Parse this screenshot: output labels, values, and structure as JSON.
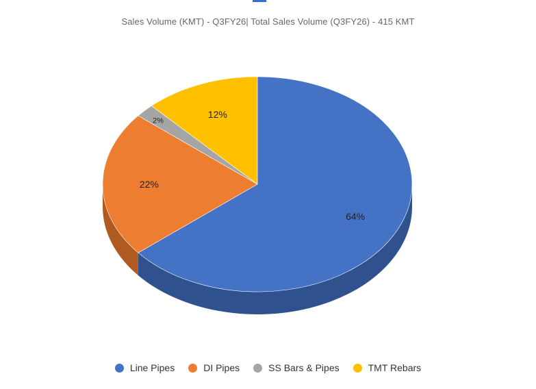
{
  "chart_data": {
    "type": "pie",
    "title": "Sales Volume (KMT) - Q3FY26| Total Sales Volume (Q3FY26) - 415 KMT",
    "style": "3d",
    "legend_position": "bottom",
    "series": [
      {
        "name": "Line Pipes",
        "value": 64,
        "label": "64%",
        "color": "#4472c4",
        "side_color": "#2f528f"
      },
      {
        "name": "DI Pipes",
        "value": 22,
        "label": "22%",
        "color": "#ed7d31",
        "side_color": "#ae5a21"
      },
      {
        "name": "SS Bars & Pipes",
        "value": 2,
        "label": "2%",
        "color": "#a5a5a5",
        "side_color": "#7c7c7c"
      },
      {
        "name": "TMT Rebars",
        "value": 12,
        "label": "12%",
        "color": "#ffc000",
        "side_color": "#bf9000"
      }
    ]
  }
}
